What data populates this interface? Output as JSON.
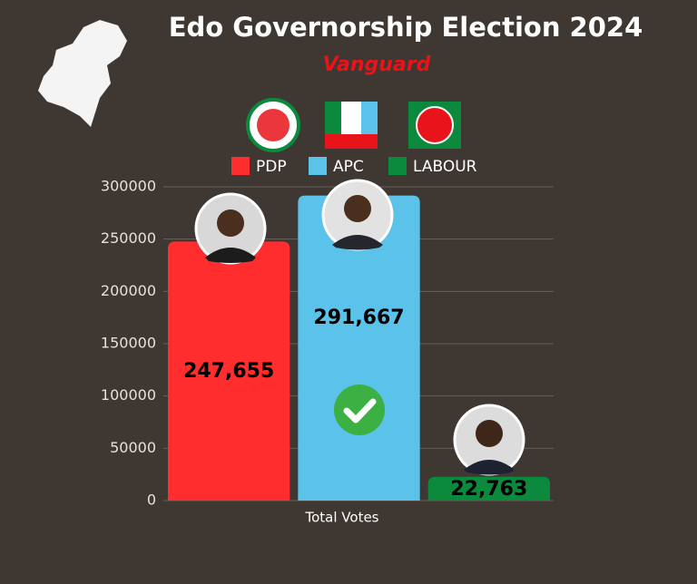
{
  "chart_data": {
    "type": "bar",
    "title": "Edo Governorship Election 2024",
    "subtitle": "Vanguard",
    "categories": [
      "Total Votes"
    ],
    "series": [
      {
        "name": "PDP",
        "color": "#ff2d2d",
        "values": [
          247655
        ],
        "value_labels": [
          "247,655"
        ]
      },
      {
        "name": "APC",
        "color": "#5bc2ea",
        "values": [
          291667
        ],
        "value_labels": [
          "291,667"
        ]
      },
      {
        "name": "LABOUR",
        "color": "#0b8a3e",
        "values": [
          22763
        ],
        "value_labels": [
          "22,763"
        ]
      }
    ],
    "ylim": [
      0,
      300000
    ],
    "yticks": [
      0,
      50000,
      100000,
      150000,
      200000,
      250000,
      300000
    ],
    "grid": true,
    "legend": "top"
  }
}
